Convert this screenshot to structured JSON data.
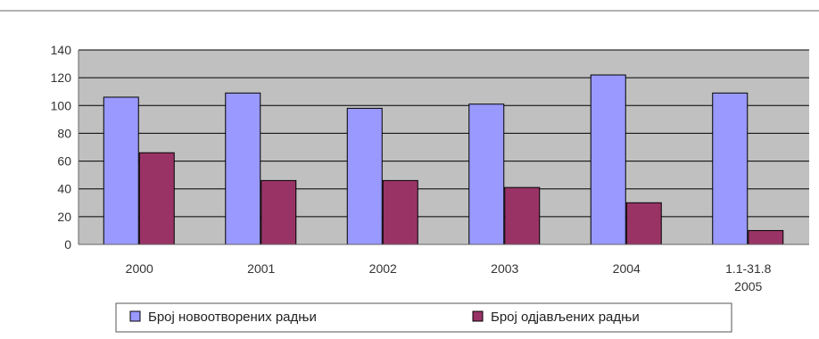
{
  "chart_data": {
    "type": "bar",
    "categories": [
      [
        "2000"
      ],
      [
        "2001"
      ],
      [
        "2002"
      ],
      [
        "2003"
      ],
      [
        "2004"
      ],
      [
        "1.1-31.8",
        "2005"
      ]
    ],
    "series": [
      {
        "name": "Број новоотворених радњи",
        "values": [
          106,
          109,
          98,
          101,
          122,
          109
        ],
        "color": "#9999ff"
      },
      {
        "name": "Број одјављених радњи",
        "values": [
          66,
          46,
          46,
          41,
          30,
          10
        ],
        "color": "#993366"
      }
    ],
    "title": "",
    "xlabel": "",
    "ylabel": "",
    "ylim": [
      0,
      140
    ],
    "yticks": [
      "0",
      "20",
      "40",
      "60",
      "80",
      "100",
      "120",
      "140"
    ],
    "grid": true,
    "plot_background": "#c0c0c0",
    "legend_position": "bottom"
  }
}
